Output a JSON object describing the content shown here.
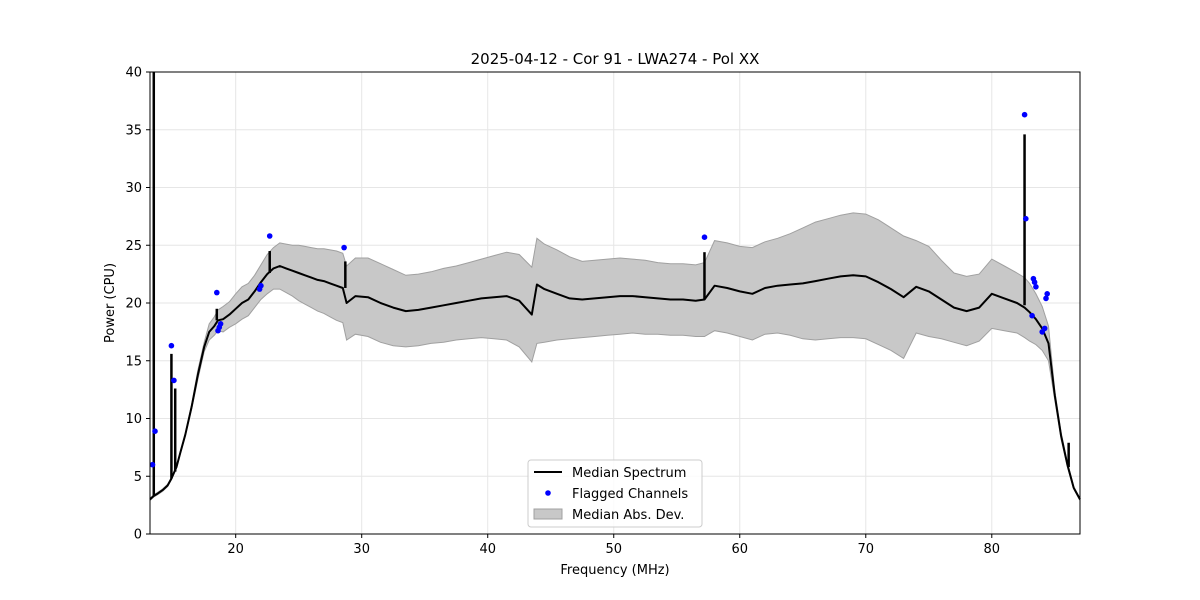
{
  "chart_data": {
    "type": "line",
    "title": "2025-04-12 - Cor 91 - LWA274 - Pol XX",
    "xlabel": "Frequency (MHz)",
    "ylabel": "Power (CPU)",
    "xlim": [
      13.2,
      87.0
    ],
    "ylim": [
      0,
      40
    ],
    "xticks": [
      20,
      30,
      40,
      50,
      60,
      70,
      80
    ],
    "yticks": [
      0,
      5,
      10,
      15,
      20,
      25,
      30,
      35,
      40
    ],
    "xtick_labels": [
      "20",
      "30",
      "40",
      "50",
      "60",
      "70",
      "80"
    ],
    "ytick_labels": [
      "0",
      "5",
      "10",
      "15",
      "20",
      "25",
      "30",
      "35",
      "40"
    ],
    "grid": true,
    "legend": {
      "location": "lower-center",
      "entries": [
        "Median Spectrum",
        "Flagged Channels",
        "Median Abs. Dev."
      ]
    },
    "colors": {
      "median": "#000000",
      "flagged": "#0000ff",
      "mad_fill": "#c8c8c8",
      "mad_edge": "#a0a0a0"
    },
    "series": [
      {
        "name": "Median Spectrum",
        "x": [
          13.2,
          13.5,
          13.8,
          14.2,
          14.6,
          14.9,
          15.3,
          15.6,
          16.0,
          16.5,
          17.0,
          17.5,
          17.9,
          18.3,
          18.6,
          19.0,
          19.5,
          20.0,
          20.5,
          21.0,
          21.5,
          22.0,
          22.5,
          23.0,
          23.5,
          24.0,
          24.5,
          25.0,
          25.5,
          26.0,
          26.5,
          27.0,
          27.5,
          28.0,
          28.5,
          28.8,
          29.5,
          30.5,
          31.5,
          32.5,
          33.5,
          34.5,
          35.5,
          36.5,
          37.5,
          38.5,
          39.5,
          40.5,
          41.5,
          42.5,
          43.5,
          43.9,
          44.5,
          45.5,
          46.5,
          47.5,
          48.5,
          49.5,
          50.5,
          51.5,
          52.5,
          53.5,
          54.5,
          55.5,
          56.5,
          57.2,
          58.0,
          59.0,
          60.0,
          61.0,
          62.0,
          63.0,
          64.0,
          65.0,
          66.0,
          67.0,
          68.0,
          69.0,
          70.0,
          71.0,
          72.0,
          73.0,
          74.0,
          75.0,
          76.0,
          77.0,
          78.0,
          79.0,
          80.0,
          81.0,
          82.0,
          82.6,
          83.0,
          83.5,
          84.0,
          84.5,
          85.0,
          85.5,
          86.0,
          86.5,
          87.0
        ],
        "y": [
          3.0,
          3.3,
          3.5,
          3.8,
          4.2,
          4.8,
          5.8,
          7.0,
          8.6,
          11.0,
          13.8,
          16.2,
          17.5,
          18.0,
          18.5,
          18.6,
          19.0,
          19.5,
          20.0,
          20.3,
          21.0,
          21.8,
          22.5,
          23.0,
          23.2,
          23.0,
          22.8,
          22.6,
          22.4,
          22.2,
          22.0,
          21.9,
          21.7,
          21.5,
          21.3,
          20.0,
          20.6,
          20.5,
          20.0,
          19.6,
          19.3,
          19.4,
          19.6,
          19.8,
          20.0,
          20.2,
          20.4,
          20.5,
          20.6,
          20.2,
          19.0,
          21.6,
          21.2,
          20.8,
          20.4,
          20.3,
          20.4,
          20.5,
          20.6,
          20.6,
          20.5,
          20.4,
          20.3,
          20.3,
          20.2,
          20.3,
          21.5,
          21.3,
          21.0,
          20.8,
          21.3,
          21.5,
          21.6,
          21.7,
          21.9,
          22.1,
          22.3,
          22.4,
          22.3,
          21.8,
          21.2,
          20.5,
          21.4,
          21.0,
          20.3,
          19.6,
          19.3,
          19.6,
          20.8,
          20.4,
          20.0,
          19.6,
          19.2,
          18.6,
          17.8,
          16.5,
          12.0,
          8.5,
          6.0,
          4.0,
          3.0
        ]
      },
      {
        "name": "Median Abs. Dev.",
        "type": "band",
        "x": [
          13.2,
          13.5,
          13.8,
          14.2,
          14.6,
          14.9,
          15.3,
          15.6,
          16.0,
          16.5,
          17.0,
          17.5,
          17.9,
          18.3,
          18.6,
          19.0,
          19.5,
          20.0,
          20.5,
          21.0,
          21.5,
          22.0,
          22.5,
          23.0,
          23.5,
          24.0,
          24.5,
          25.0,
          25.5,
          26.0,
          26.5,
          27.0,
          27.5,
          28.0,
          28.5,
          28.8,
          29.5,
          30.5,
          31.5,
          32.5,
          33.5,
          34.5,
          35.5,
          36.5,
          37.5,
          38.5,
          39.5,
          40.5,
          41.5,
          42.5,
          43.5,
          43.9,
          44.5,
          45.5,
          46.5,
          47.5,
          48.5,
          49.5,
          50.5,
          51.5,
          52.5,
          53.5,
          54.5,
          55.5,
          56.5,
          57.2,
          58.0,
          59.0,
          60.0,
          61.0,
          62.0,
          63.0,
          64.0,
          65.0,
          66.0,
          67.0,
          68.0,
          69.0,
          70.0,
          71.0,
          72.0,
          73.0,
          74.0,
          75.0,
          76.0,
          77.0,
          78.0,
          79.0,
          80.0,
          81.0,
          82.0,
          82.6,
          83.0,
          83.5,
          84.0,
          84.5,
          85.0,
          85.5,
          86.0,
          86.5,
          87.0
        ],
        "lower": [
          2.9,
          3.2,
          3.4,
          3.7,
          4.1,
          4.7,
          5.7,
          6.9,
          8.5,
          10.8,
          13.4,
          15.8,
          16.8,
          17.2,
          17.6,
          17.5,
          17.9,
          18.2,
          18.6,
          18.9,
          19.6,
          20.3,
          20.8,
          21.2,
          21.2,
          20.9,
          20.6,
          20.2,
          19.9,
          19.6,
          19.3,
          19.1,
          18.8,
          18.5,
          18.3,
          16.8,
          17.3,
          17.1,
          16.6,
          16.3,
          16.2,
          16.3,
          16.5,
          16.6,
          16.8,
          16.9,
          17.0,
          16.9,
          16.8,
          16.2,
          14.9,
          16.5,
          16.6,
          16.8,
          16.9,
          17.0,
          17.1,
          17.2,
          17.3,
          17.4,
          17.3,
          17.3,
          17.2,
          17.2,
          17.1,
          17.1,
          17.6,
          17.4,
          17.1,
          16.8,
          17.3,
          17.4,
          17.2,
          16.9,
          16.8,
          16.9,
          17.0,
          17.0,
          16.9,
          16.4,
          15.9,
          15.2,
          17.4,
          17.1,
          16.9,
          16.6,
          16.3,
          16.7,
          17.8,
          17.6,
          17.4,
          17.0,
          16.7,
          16.4,
          15.9,
          15.0,
          11.6,
          8.2,
          5.8,
          3.9,
          2.9
        ],
        "upper": [
          3.1,
          3.4,
          3.6,
          3.9,
          4.3,
          4.9,
          5.9,
          7.1,
          8.7,
          11.2,
          14.2,
          16.6,
          18.2,
          18.8,
          19.4,
          19.7,
          20.1,
          20.8,
          21.4,
          21.7,
          22.4,
          23.3,
          24.2,
          24.8,
          25.2,
          25.1,
          25.0,
          25.0,
          24.9,
          24.8,
          24.7,
          24.7,
          24.6,
          24.5,
          24.3,
          23.2,
          23.9,
          23.9,
          23.4,
          22.9,
          22.4,
          22.5,
          22.7,
          23.0,
          23.2,
          23.5,
          23.8,
          24.1,
          24.4,
          24.2,
          23.1,
          25.6,
          25.1,
          24.6,
          24.0,
          23.6,
          23.7,
          23.8,
          23.9,
          23.8,
          23.7,
          23.5,
          23.4,
          23.4,
          23.3,
          23.5,
          25.4,
          25.2,
          24.9,
          24.8,
          25.3,
          25.6,
          26.0,
          26.5,
          27.0,
          27.3,
          27.6,
          27.8,
          27.7,
          27.2,
          26.5,
          25.8,
          25.4,
          24.9,
          23.7,
          22.6,
          22.3,
          22.5,
          23.8,
          23.2,
          22.6,
          22.2,
          21.7,
          20.8,
          19.7,
          18.0,
          12.4,
          8.8,
          6.2,
          4.1,
          3.1
        ]
      },
      {
        "name": "Flagged Channels",
        "type": "scatter",
        "x": [
          13.4,
          13.6,
          14.9,
          15.1,
          18.5,
          18.6,
          18.7,
          18.8,
          21.9,
          22.0,
          22.7,
          28.6,
          57.2,
          82.6,
          82.7,
          83.2,
          83.3,
          83.4,
          83.5,
          84.0,
          84.2,
          84.3,
          84.4
        ],
        "y": [
          6.0,
          8.9,
          16.3,
          13.3,
          20.9,
          17.6,
          17.9,
          18.2,
          21.2,
          21.5,
          25.8,
          24.8,
          25.7,
          36.3,
          27.3,
          18.9,
          22.1,
          21.8,
          21.4,
          17.5,
          17.8,
          20.4,
          20.8
        ]
      },
      {
        "name": "Spikes",
        "type": "rfi_spikes",
        "items": [
          {
            "x": 13.5,
            "base": 3.3,
            "top": 40.0
          },
          {
            "x": 14.9,
            "base": 4.8,
            "top": 15.6
          },
          {
            "x": 15.2,
            "base": 5.4,
            "top": 12.6
          },
          {
            "x": 18.5,
            "base": 18.5,
            "top": 19.5
          },
          {
            "x": 22.7,
            "base": 22.6,
            "top": 24.5
          },
          {
            "x": 28.7,
            "base": 21.3,
            "top": 23.6
          },
          {
            "x": 57.2,
            "base": 20.3,
            "top": 24.4
          },
          {
            "x": 82.6,
            "base": 19.8,
            "top": 34.6
          },
          {
            "x": 86.1,
            "base": 5.8,
            "top": 7.9
          }
        ]
      }
    ]
  }
}
